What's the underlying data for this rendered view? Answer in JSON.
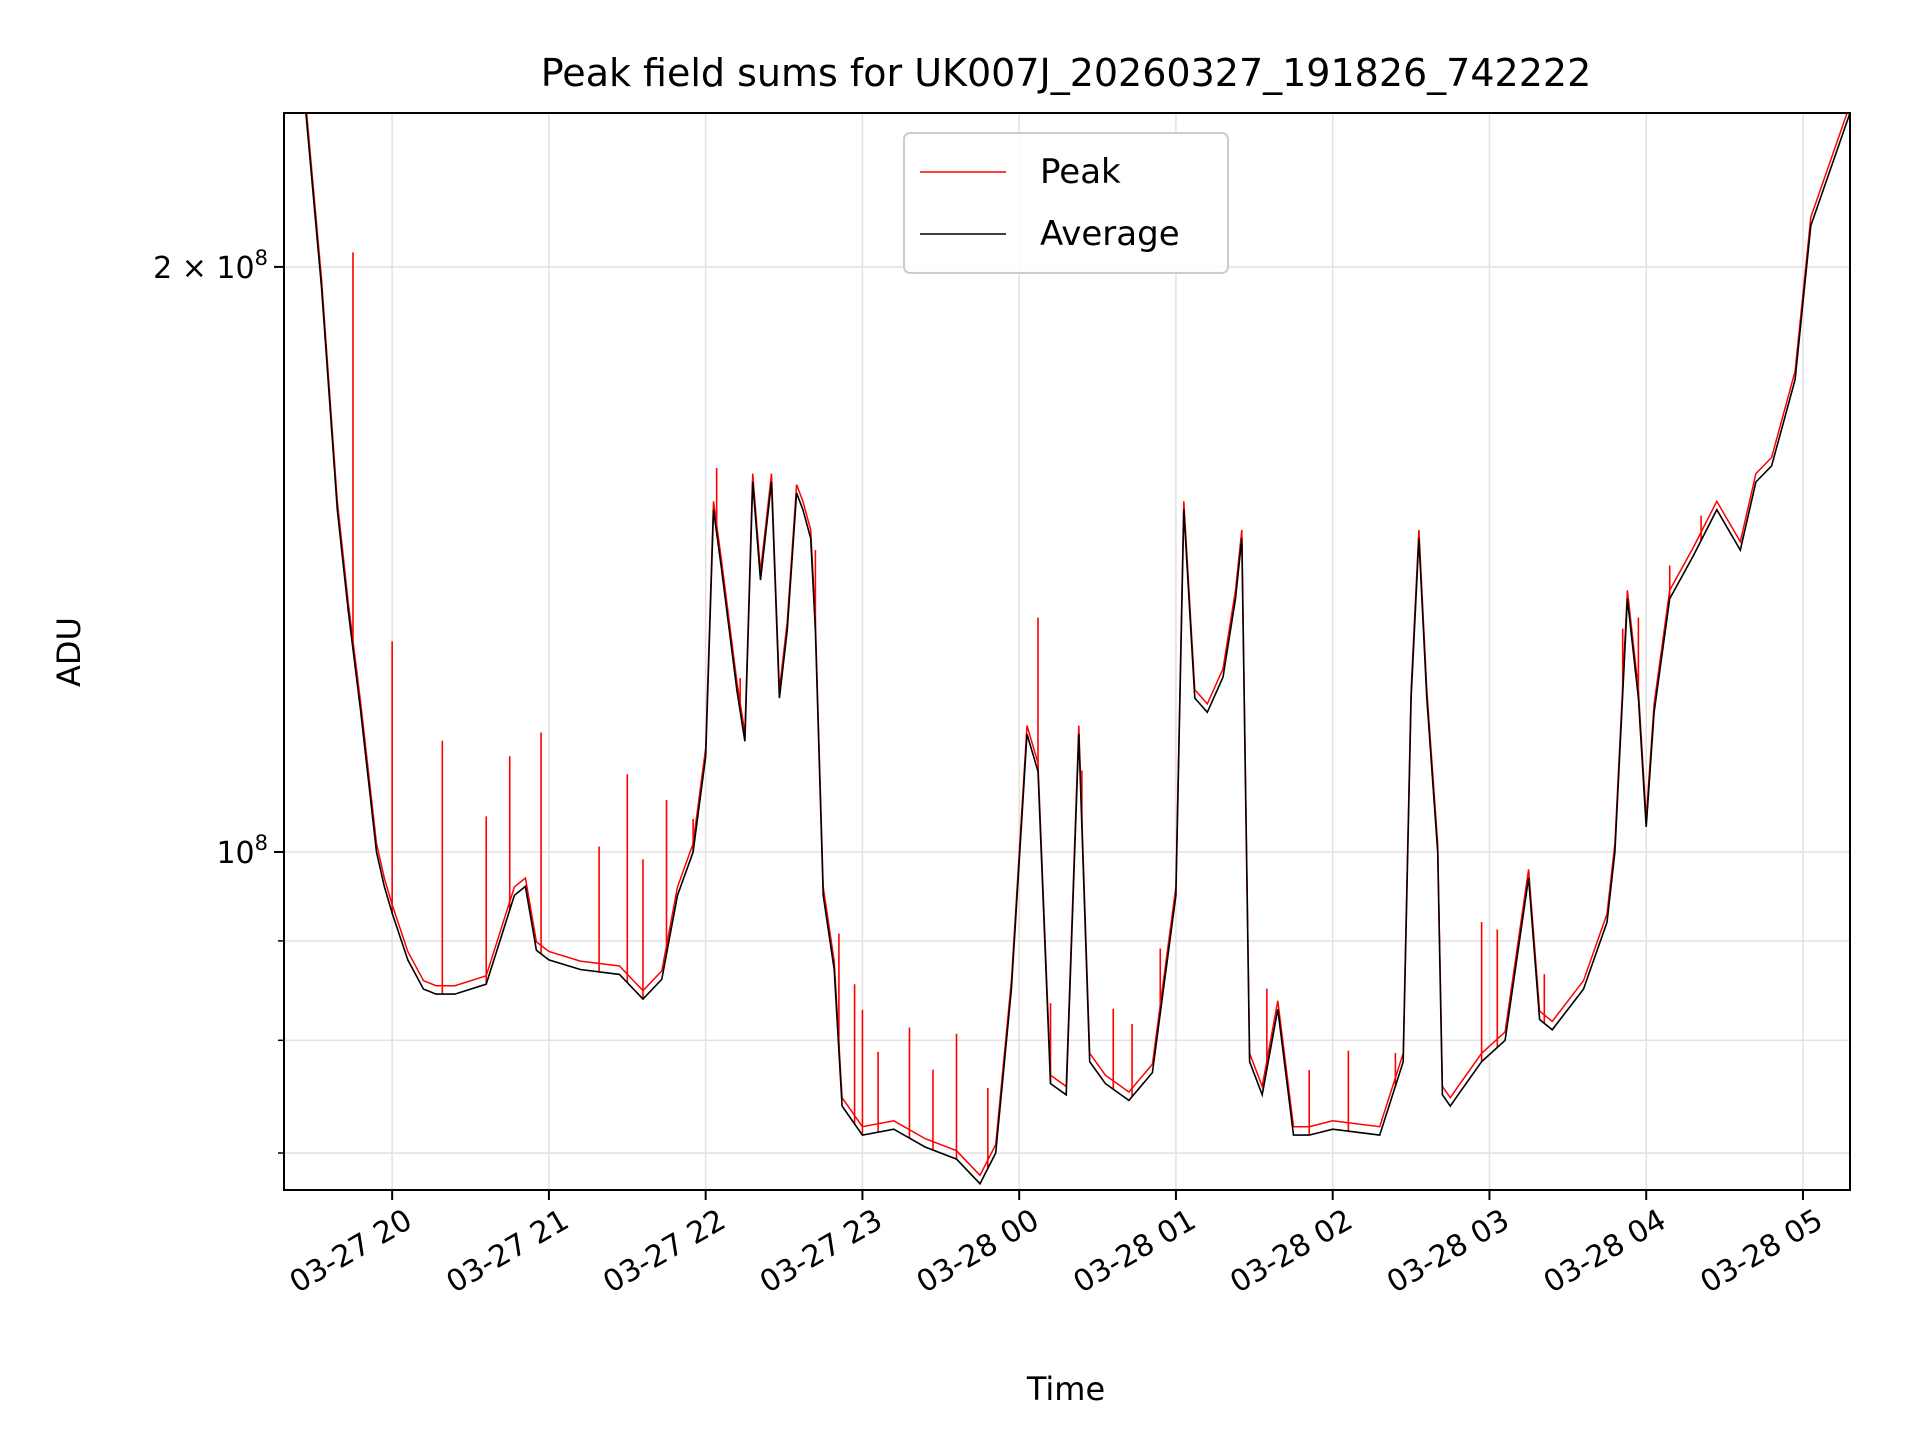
{
  "chart_data": {
    "type": "line",
    "title": "Peak field sums for UK007J_20260327_191826_742222",
    "xlabel": "Time",
    "ylabel": "ADU",
    "y_scale": "log",
    "xlim_hours": [
      19.31,
      29.3
    ],
    "ylim": [
      67000000,
      240000000
    ],
    "grid": true,
    "legend_position": "upper center",
    "x_ticks": [
      {
        "hour": 20,
        "label": "03-27 20"
      },
      {
        "hour": 21,
        "label": "03-27 21"
      },
      {
        "hour": 22,
        "label": "03-27 22"
      },
      {
        "hour": 23,
        "label": "03-27 23"
      },
      {
        "hour": 24,
        "label": "03-28 00"
      },
      {
        "hour": 25,
        "label": "03-28 01"
      },
      {
        "hour": 26,
        "label": "03-28 02"
      },
      {
        "hour": 27,
        "label": "03-28 03"
      },
      {
        "hour": 28,
        "label": "03-28 04"
      },
      {
        "hour": 29,
        "label": "03-28 05"
      }
    ],
    "y_major_ticks": [
      {
        "value": 100000000,
        "base": "10",
        "exp": "8",
        "coef": ""
      },
      {
        "value": 200000000,
        "base": "10",
        "exp": "8",
        "coef": "2 × "
      }
    ],
    "y_minor_ticks": [
      70000000,
      80000000,
      90000000
    ],
    "series": [
      {
        "name": "Peak",
        "color": "#ff0000"
      },
      {
        "name": "Average",
        "color": "#000000"
      }
    ],
    "x_hours": [
      19.31,
      19.45,
      19.55,
      19.65,
      19.72,
      19.8,
      19.9,
      19.95,
      20.0,
      20.1,
      20.2,
      20.28,
      20.4,
      20.6,
      20.78,
      20.85,
      20.92,
      21.0,
      21.2,
      21.45,
      21.6,
      21.72,
      21.82,
      21.92,
      22.0,
      22.05,
      22.1,
      22.2,
      22.25,
      22.3,
      22.35,
      22.42,
      22.47,
      22.52,
      22.58,
      22.62,
      22.67,
      22.7,
      22.75,
      22.82,
      22.87,
      23.0,
      23.2,
      23.4,
      23.6,
      23.75,
      23.85,
      23.95,
      24.05,
      24.12,
      24.2,
      24.3,
      24.38,
      24.45,
      24.55,
      24.7,
      24.85,
      25.0,
      25.05,
      25.12,
      25.2,
      25.3,
      25.38,
      25.42,
      25.47,
      25.55,
      25.65,
      25.75,
      25.85,
      26.0,
      26.3,
      26.45,
      26.5,
      26.55,
      26.6,
      26.67,
      26.7,
      26.75,
      26.8,
      26.95,
      27.1,
      27.25,
      27.32,
      27.4,
      27.6,
      27.75,
      27.8,
      27.88,
      27.95,
      28.0,
      28.05,
      28.15,
      28.3,
      28.45,
      28.6,
      28.7,
      28.8,
      28.95,
      29.05,
      29.3
    ],
    "average": [
      240000000,
      240000000,
      195000000,
      150000000,
      133000000,
      118000000,
      100000000,
      96000000,
      93000000,
      88000000,
      85000000,
      84500000,
      84500000,
      85500000,
      95000000,
      96000000,
      89000000,
      88000000,
      87000000,
      86500000,
      84000000,
      86000000,
      95000000,
      100000000,
      112000000,
      150000000,
      140000000,
      121000000,
      114000000,
      155000000,
      138000000,
      155000000,
      120000000,
      130000000,
      153000000,
      150000000,
      145000000,
      130000000,
      95000000,
      87000000,
      74000000,
      71500000,
      72000000,
      70500000,
      69500000,
      67500000,
      70000000,
      85000000,
      115000000,
      110000000,
      76000000,
      75000000,
      115000000,
      78000000,
      76000000,
      74500000,
      77000000,
      95000000,
      150000000,
      120000000,
      118000000,
      123000000,
      135000000,
      145000000,
      78000000,
      75000000,
      83000000,
      71500000,
      71500000,
      72000000,
      71500000,
      78000000,
      120000000,
      145000000,
      120000000,
      100000000,
      75000000,
      74000000,
      75000000,
      78000000,
      80000000,
      97000000,
      82000000,
      81000000,
      85000000,
      92000000,
      100000000,
      135000000,
      120000000,
      103000000,
      118000000,
      135000000,
      142000000,
      150000000,
      143000000,
      155000000,
      158000000,
      175000000,
      210000000,
      240000000
    ],
    "spikes": [
      [
        19.75,
        1.6
      ],
      [
        20.0,
        1.38
      ],
      [
        20.32,
        1.35
      ],
      [
        20.6,
        1.22
      ],
      [
        20.75,
        1.2
      ],
      [
        20.95,
        1.3
      ],
      [
        21.32,
        1.16
      ],
      [
        21.5,
        1.28
      ],
      [
        21.6,
        1.18
      ],
      [
        21.75,
        1.2
      ],
      [
        21.92,
        1.04
      ],
      [
        22.07,
        1.08
      ],
      [
        22.22,
        1.04
      ],
      [
        22.7,
        1.1
      ],
      [
        22.85,
        1.15
      ],
      [
        22.95,
        1.18
      ],
      [
        23.0,
        1.16
      ],
      [
        23.1,
        1.1
      ],
      [
        23.3,
        1.14
      ],
      [
        23.45,
        1.1
      ],
      [
        23.6,
        1.16
      ],
      [
        23.8,
        1.1
      ],
      [
        24.12,
        1.2
      ],
      [
        24.2,
        1.1
      ],
      [
        24.4,
        1.07
      ],
      [
        24.6,
        1.1
      ],
      [
        24.72,
        1.09
      ],
      [
        24.9,
        1.08
      ],
      [
        25.58,
        1.1
      ],
      [
        25.85,
        1.08
      ],
      [
        26.1,
        1.1
      ],
      [
        26.4,
        1.04
      ],
      [
        26.95,
        1.18
      ],
      [
        27.05,
        1.15
      ],
      [
        27.35,
        1.06
      ],
      [
        27.85,
        1.08
      ],
      [
        27.95,
        1.1
      ],
      [
        28.15,
        1.04
      ],
      [
        28.35,
        1.03
      ]
    ]
  },
  "legend": {
    "peak_label": "Peak",
    "average_label": "Average"
  }
}
